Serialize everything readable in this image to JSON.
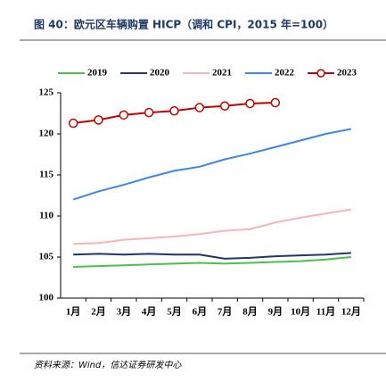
{
  "chart_data": {
    "type": "line",
    "title": "图 40：欧元区车辆购置 HICP（调和 CPI，2015 年=100）",
    "source": "资料来源：Wind，信达证券研发中心",
    "categories": [
      "1月",
      "2月",
      "3月",
      "4月",
      "5月",
      "6月",
      "7月",
      "8月",
      "9月",
      "10月",
      "11月",
      "12月"
    ],
    "series": [
      {
        "name": "2019",
        "color": "#4dbf4d",
        "values": [
          103.8,
          103.9,
          104.0,
          104.1,
          104.2,
          104.3,
          104.2,
          104.3,
          104.4,
          104.5,
          104.7,
          105.0
        ]
      },
      {
        "name": "2020",
        "color": "#1f3864",
        "values": [
          105.3,
          105.4,
          105.3,
          105.4,
          105.3,
          105.3,
          104.8,
          104.9,
          105.1,
          105.2,
          105.3,
          105.5
        ]
      },
      {
        "name": "2021",
        "color": "#f4b6b6",
        "values": [
          106.6,
          106.7,
          107.1,
          107.3,
          107.5,
          107.8,
          108.2,
          108.4,
          109.2,
          109.8,
          110.3,
          110.8
        ]
      },
      {
        "name": "2022",
        "color": "#3d85e6",
        "values": [
          112.0,
          113.0,
          113.8,
          114.7,
          115.5,
          116.0,
          116.9,
          117.6,
          118.4,
          119.2,
          120.0,
          120.6
        ]
      },
      {
        "name": "2023",
        "color": "#c00000",
        "markers": true,
        "values": [
          121.3,
          121.7,
          122.3,
          122.6,
          122.8,
          123.2,
          123.4,
          123.7,
          123.8,
          null,
          null,
          null
        ]
      }
    ],
    "ylim": [
      100,
      125
    ],
    "yticks": [
      100,
      105,
      110,
      115,
      120,
      125
    ],
    "legend": "top"
  }
}
